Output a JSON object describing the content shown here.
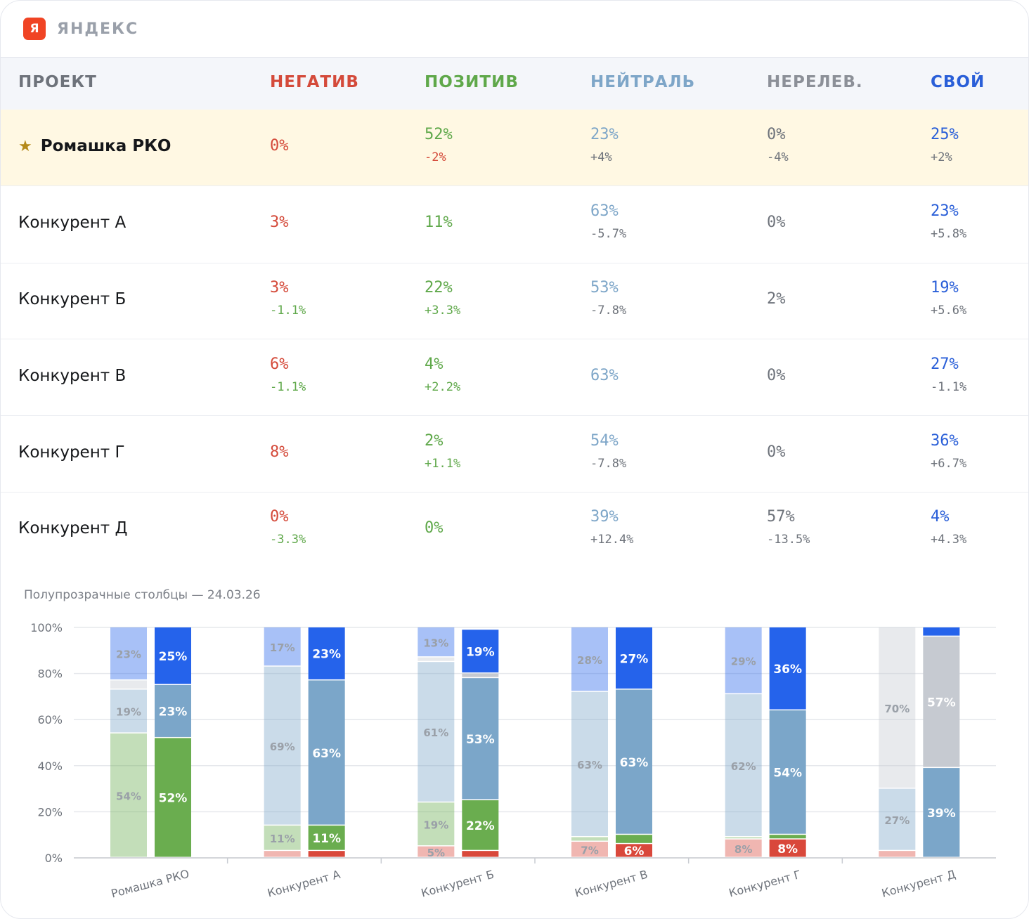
{
  "brand": {
    "logo": "Я",
    "name": "ЯНДЕКС"
  },
  "colors": {
    "negative": "#d44a3a",
    "positive": "#5fa84a",
    "neutral": "#7ea6c8",
    "irrelevant": "#6e737b",
    "own": "#2a5fd8",
    "delta_neg": "#d44a3a",
    "delta_pos": "#5fa84a",
    "delta_neutral": "#6e737b",
    "header": "#6e737b"
  },
  "table": {
    "headers": {
      "project": "ПРОЕКТ",
      "negative": "НЕГАТИВ",
      "positive": "ПОЗИТИВ",
      "neutral": "НЕЙТРАЛЬ",
      "irrelevant": "НЕРЕЛЕВ.",
      "own": "СВОЙ"
    },
    "rows": [
      {
        "name": "Ромашка РКО",
        "highlight": true,
        "star": "★",
        "negative": "0%",
        "negative_delta": "",
        "positive": "52%",
        "positive_delta": "-2%",
        "neutral": "23%",
        "neutral_delta": "+4%",
        "irrelevant": "0%",
        "irrelevant_delta": "-4%",
        "own": "25%",
        "own_delta": "+2%"
      },
      {
        "name": "Конкурент А",
        "highlight": false,
        "negative": "3%",
        "negative_delta": "",
        "positive": "11%",
        "positive_delta": "",
        "neutral": "63%",
        "neutral_delta": "-5.7%",
        "irrelevant": "0%",
        "irrelevant_delta": "",
        "own": "23%",
        "own_delta": "+5.8%"
      },
      {
        "name": "Конкурент Б",
        "highlight": false,
        "negative": "3%",
        "negative_delta": "-1.1%",
        "positive": "22%",
        "positive_delta": "+3.3%",
        "neutral": "53%",
        "neutral_delta": "-7.8%",
        "irrelevant": "2%",
        "irrelevant_delta": "",
        "own": "19%",
        "own_delta": "+5.6%"
      },
      {
        "name": "Конкурент В",
        "highlight": false,
        "negative": "6%",
        "negative_delta": "-1.1%",
        "positive": "4%",
        "positive_delta": "+2.2%",
        "neutral": "63%",
        "neutral_delta": "",
        "irrelevant": "0%",
        "irrelevant_delta": "",
        "own": "27%",
        "own_delta": "-1.1%"
      },
      {
        "name": "Конкурент Г",
        "highlight": false,
        "negative": "8%",
        "negative_delta": "",
        "positive": "2%",
        "positive_delta": "+1.1%",
        "neutral": "54%",
        "neutral_delta": "-7.8%",
        "irrelevant": "0%",
        "irrelevant_delta": "",
        "own": "36%",
        "own_delta": "+6.7%"
      },
      {
        "name": "Конкурент Д",
        "highlight": false,
        "negative": "0%",
        "negative_delta": "-3.3%",
        "positive": "0%",
        "positive_delta": "",
        "neutral": "39%",
        "neutral_delta": "+12.4%",
        "irrelevant": "57%",
        "irrelevant_delta": "-13.5%",
        "own": "4%",
        "own_delta": "+4.3%"
      }
    ]
  },
  "chart_data": {
    "type": "bar",
    "stacked": true,
    "title": "Полупрозрачные столбцы — 24.03.26",
    "categories": [
      "Ромашка РКО",
      "Конкурент А",
      "Конкурент Б",
      "Конкурент В",
      "Конкурент Г",
      "Конкурент Д"
    ],
    "ylim": [
      0,
      100
    ],
    "yticks": [
      "0%",
      "20%",
      "40%",
      "60%",
      "80%",
      "100%"
    ],
    "grid": true,
    "stack_order": [
      "negative",
      "positive",
      "neutral",
      "irrelevant",
      "own"
    ],
    "series_colors": {
      "negative": "#d9483b",
      "positive": "#6aad4f",
      "neutral": "#7ba6c9",
      "irrelevant": "#c6cad1",
      "own": "#2563eb"
    },
    "previous": [
      {
        "negative": 0,
        "positive": 54,
        "neutral": 19,
        "irrelevant": 4,
        "own": 23
      },
      {
        "negative": 3,
        "positive": 11,
        "neutral": 69,
        "irrelevant": 0,
        "own": 17
      },
      {
        "negative": 5,
        "positive": 19,
        "neutral": 61,
        "irrelevant": 2,
        "own": 13
      },
      {
        "negative": 7,
        "positive": 2,
        "neutral": 63,
        "irrelevant": 0,
        "own": 28
      },
      {
        "negative": 8,
        "positive": 1,
        "neutral": 62,
        "irrelevant": 0,
        "own": 29
      },
      {
        "negative": 3,
        "positive": 0,
        "neutral": 27,
        "irrelevant": 70,
        "own": 0
      }
    ],
    "current": [
      {
        "negative": 0,
        "positive": 52,
        "neutral": 23,
        "irrelevant": 0,
        "own": 25
      },
      {
        "negative": 3,
        "positive": 11,
        "neutral": 63,
        "irrelevant": 0,
        "own": 23
      },
      {
        "negative": 3,
        "positive": 22,
        "neutral": 53,
        "irrelevant": 2,
        "own": 19
      },
      {
        "negative": 6,
        "positive": 4,
        "neutral": 63,
        "irrelevant": 0,
        "own": 27
      },
      {
        "negative": 8,
        "positive": 2,
        "neutral": 54,
        "irrelevant": 0,
        "own": 36
      },
      {
        "negative": 0,
        "positive": 0,
        "neutral": 39,
        "irrelevant": 57,
        "own": 4
      }
    ],
    "previous_labels": [
      {
        "positive": "54%",
        "neutral": "19%",
        "own": "23%"
      },
      {
        "positive": "11%",
        "neutral": "69%",
        "own": "17%"
      },
      {
        "negative": "5%",
        "positive": "19%",
        "neutral": "61%",
        "own": "13%"
      },
      {
        "negative": "7%",
        "neutral": "63%",
        "own": "28%"
      },
      {
        "negative": "8%",
        "neutral": "62%",
        "own": "29%"
      },
      {
        "neutral": "27%",
        "irrelevant": "70%"
      }
    ],
    "current_labels": [
      {
        "positive": "52%",
        "neutral": "23%",
        "own": "25%"
      },
      {
        "positive": "11%",
        "neutral": "63%",
        "own": "23%"
      },
      {
        "positive": "22%",
        "neutral": "53%",
        "own": "19%"
      },
      {
        "negative": "6%",
        "neutral": "63%",
        "own": "27%"
      },
      {
        "negative": "8%",
        "neutral": "54%",
        "own": "36%"
      },
      {
        "neutral": "39%",
        "irrelevant": "57%"
      }
    ]
  }
}
